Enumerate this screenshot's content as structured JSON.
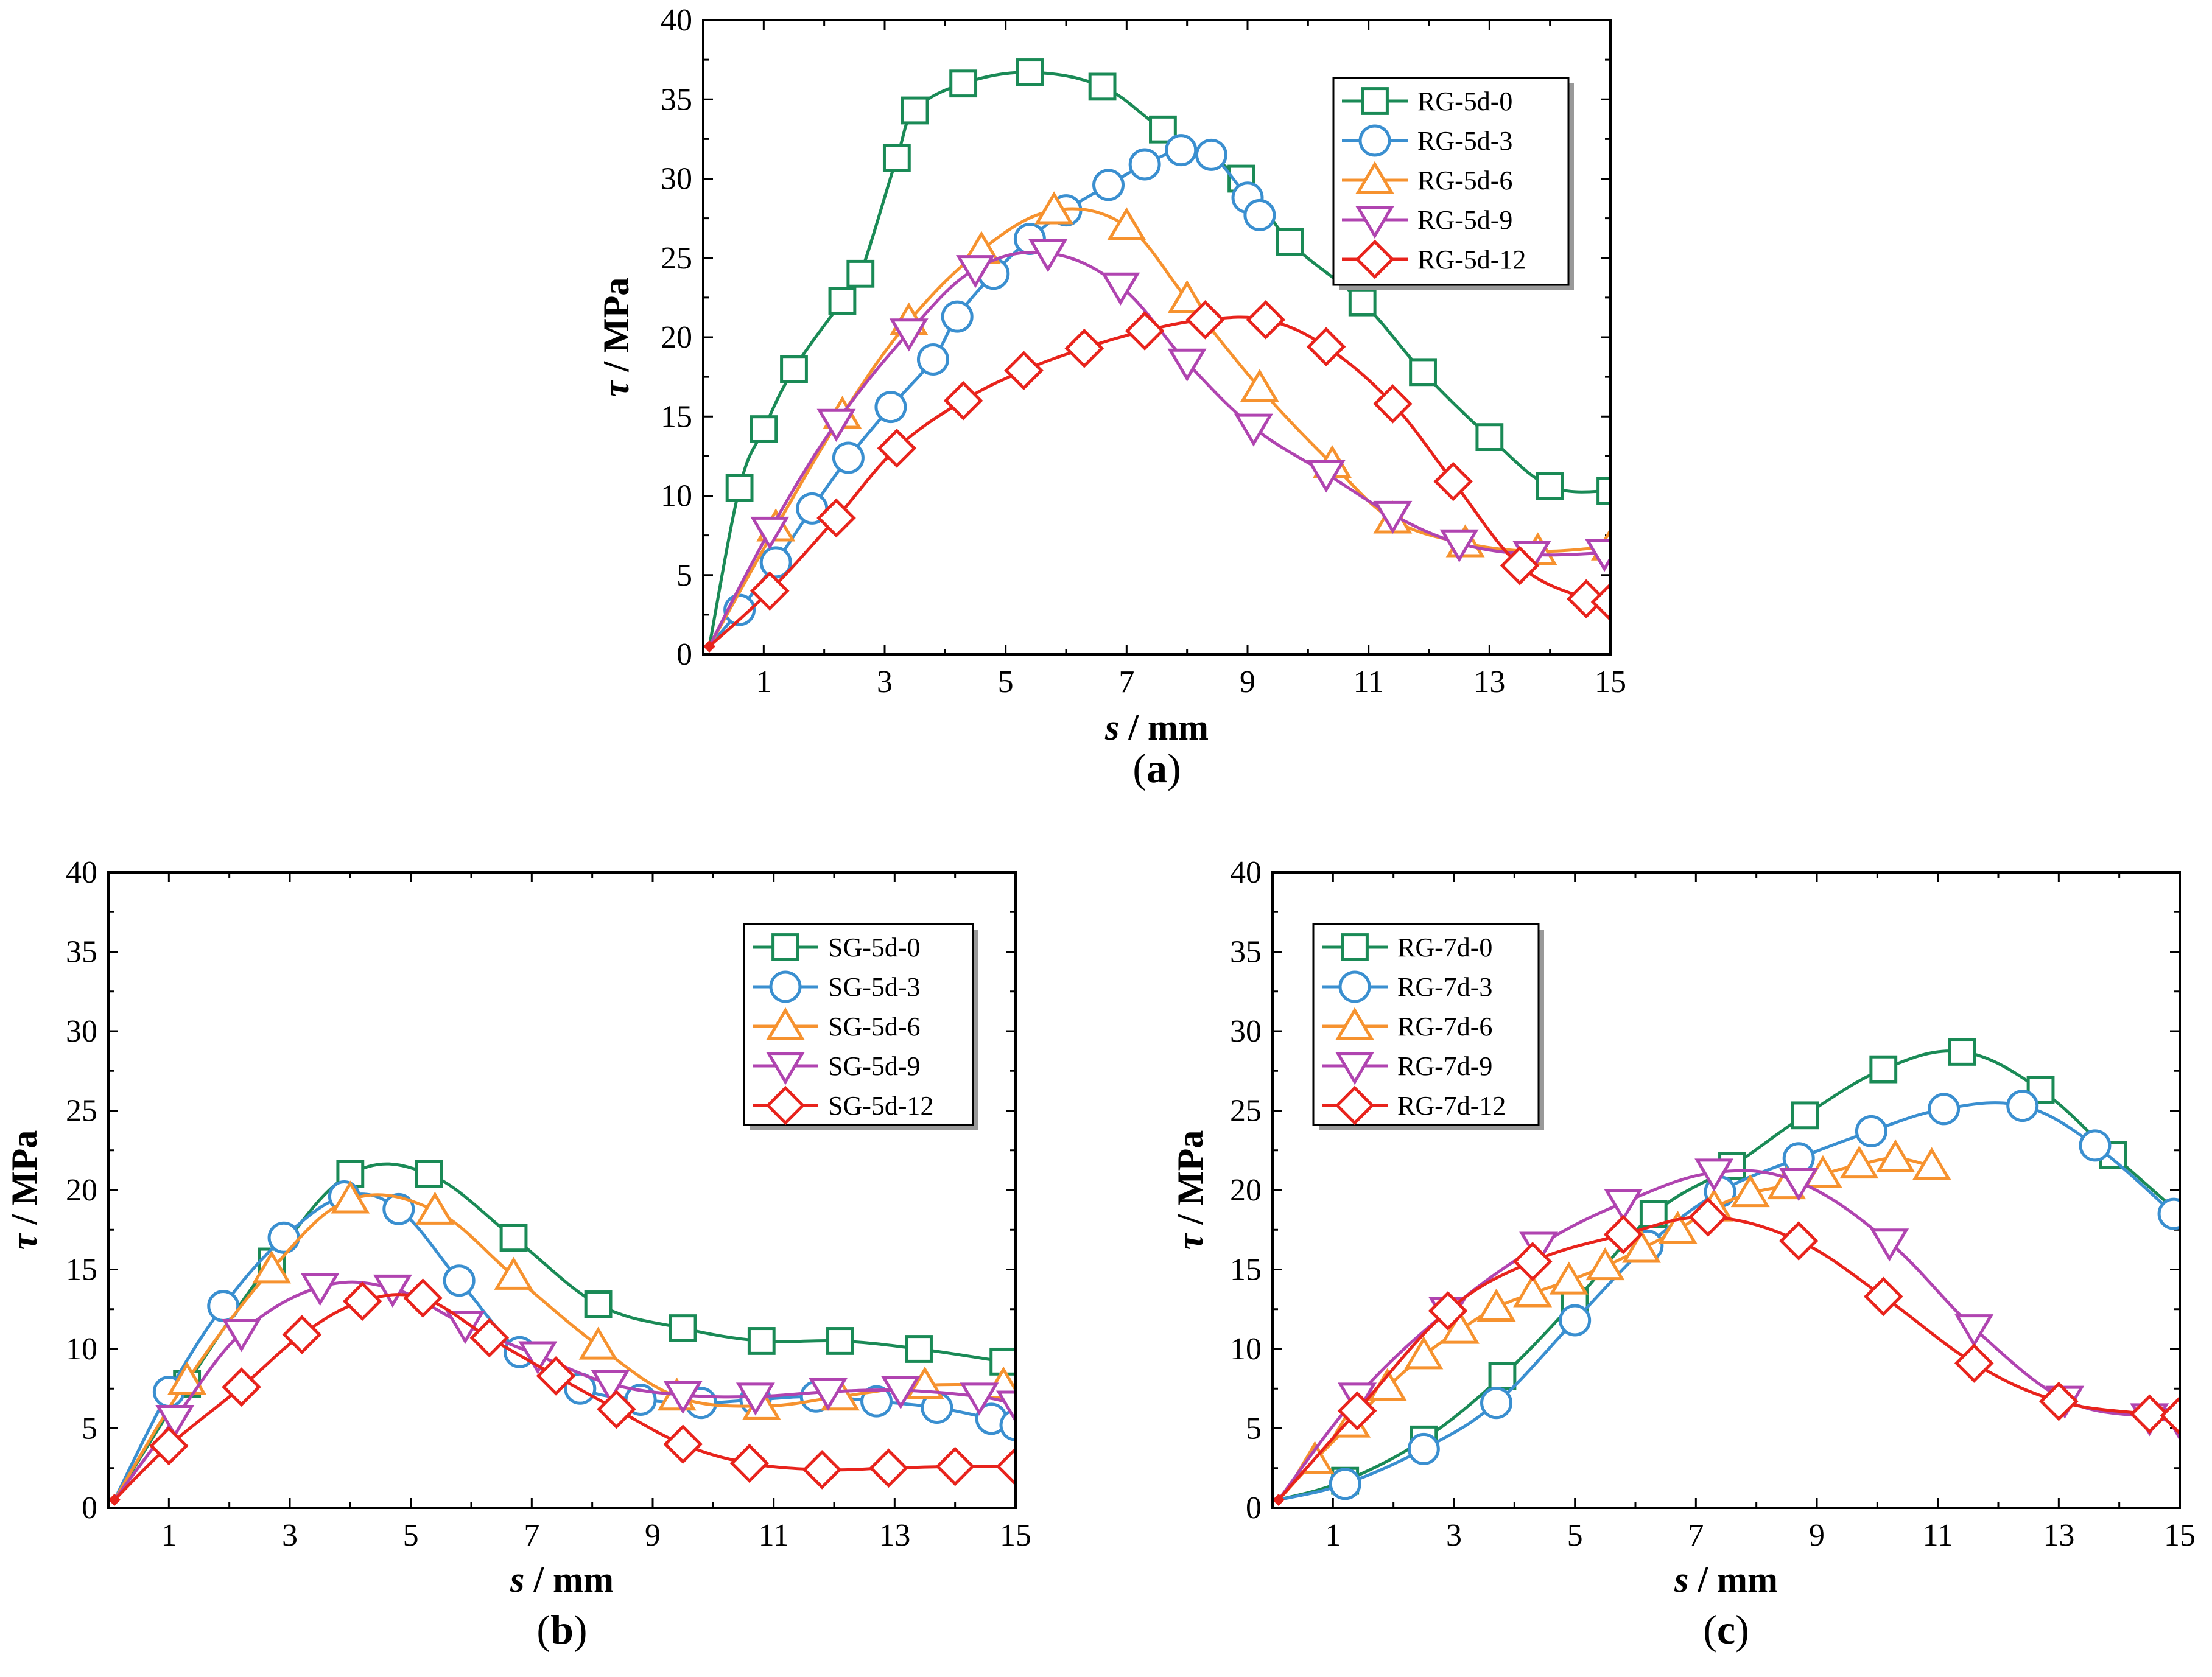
{
  "chart_data": [
    {
      "type": "line",
      "panel_label": "a",
      "xlabel_symbol": "s",
      "xlabel_unit": " / mm",
      "ylabel_symbol": "τ",
      "ylabel_unit": " / MPa",
      "xlim": [
        0,
        15
      ],
      "ylim": [
        0,
        40
      ],
      "xticks": [
        1,
        3,
        5,
        7,
        9,
        11,
        13,
        15
      ],
      "yticks": [
        0,
        5,
        10,
        15,
        20,
        25,
        30,
        35,
        40
      ],
      "legend_position": "top-right",
      "series": [
        {
          "name": "RG-5d-0",
          "color": "#1a8a56",
          "marker": "square",
          "x": [
            0.1,
            0.6,
            1.0,
            1.5,
            2.3,
            2.6,
            3.2,
            3.5,
            4.3,
            5.4,
            6.6,
            7.6,
            8.9,
            9.7,
            10.9,
            11.9,
            13.0,
            14.0,
            15.0
          ],
          "y": [
            0.5,
            10.5,
            14.2,
            18.0,
            22.3,
            24.0,
            31.3,
            34.3,
            36.0,
            36.7,
            35.8,
            33.1,
            30.0,
            26.0,
            22.2,
            17.8,
            13.7,
            10.6,
            10.3
          ]
        },
        {
          "name": "RG-5d-3",
          "color": "#3a8fd0",
          "marker": "circle",
          "x": [
            0.1,
            0.6,
            1.2,
            1.8,
            2.4,
            3.1,
            3.8,
            4.2,
            4.8,
            5.4,
            6.0,
            6.7,
            7.3,
            7.9,
            8.4,
            9.0,
            9.2
          ],
          "y": [
            0.5,
            2.8,
            5.8,
            9.2,
            12.4,
            15.6,
            18.6,
            21.3,
            24.0,
            26.2,
            28.0,
            29.6,
            30.9,
            31.8,
            31.5,
            28.8,
            27.7
          ]
        },
        {
          "name": "RG-5d-6",
          "color": "#f6922f",
          "marker": "triangle-up",
          "x": [
            0.1,
            1.2,
            2.3,
            3.4,
            4.6,
            5.8,
            7.0,
            8.0,
            9.2,
            10.4,
            11.4,
            12.6,
            13.8,
            15.0
          ],
          "y": [
            0.5,
            8.0,
            15.1,
            21.0,
            25.5,
            28.0,
            27.0,
            22.4,
            16.8,
            12.0,
            8.5,
            7.0,
            6.5,
            6.8
          ]
        },
        {
          "name": "RG-5d-9",
          "color": "#b044b0",
          "marker": "triangle-down",
          "x": [
            0.1,
            1.1,
            2.2,
            3.4,
            4.5,
            5.7,
            6.9,
            8.0,
            9.1,
            10.3,
            11.4,
            12.5,
            13.7,
            14.9
          ],
          "y": [
            0.5,
            7.8,
            14.6,
            20.3,
            24.3,
            25.3,
            23.2,
            18.4,
            14.3,
            11.4,
            8.8,
            7.0,
            6.3,
            6.4
          ]
        },
        {
          "name": "RG-5d-12",
          "color": "#e8231c",
          "marker": "diamond",
          "x": [
            0.1,
            1.1,
            2.2,
            3.2,
            4.3,
            5.3,
            6.3,
            7.3,
            8.3,
            9.3,
            10.3,
            11.4,
            12.4,
            13.5,
            14.6,
            15.0
          ],
          "y": [
            0.5,
            4.0,
            8.6,
            13.0,
            16.0,
            17.9,
            19.3,
            20.4,
            21.1,
            21.1,
            19.4,
            15.8,
            10.9,
            5.6,
            3.5,
            3.3
          ]
        }
      ]
    },
    {
      "type": "line",
      "panel_label": "b",
      "xlabel_symbol": "s",
      "xlabel_unit": " / mm",
      "ylabel_symbol": "τ",
      "ylabel_unit": " / MPa",
      "xlim": [
        0,
        15
      ],
      "ylim": [
        0,
        40
      ],
      "xticks": [
        1,
        3,
        5,
        7,
        9,
        11,
        13,
        15
      ],
      "yticks": [
        0,
        5,
        10,
        15,
        20,
        25,
        30,
        35,
        40
      ],
      "legend_position": "top-right",
      "series": [
        {
          "name": "SG-5d-0",
          "color": "#1a8a56",
          "marker": "square",
          "x": [
            0.1,
            1.3,
            2.7,
            4.0,
            5.3,
            6.7,
            8.1,
            9.5,
            10.8,
            12.1,
            13.4,
            14.8
          ],
          "y": [
            0.5,
            7.8,
            15.5,
            21.0,
            21.0,
            17.0,
            12.8,
            11.3,
            10.5,
            10.5,
            10.0,
            9.2
          ]
        },
        {
          "name": "SG-5d-3",
          "color": "#3a8fd0",
          "marker": "circle",
          "x": [
            0.1,
            1.0,
            1.9,
            2.9,
            3.9,
            4.8,
            5.8,
            6.8,
            7.8,
            8.8,
            9.8,
            10.7,
            11.7,
            12.7,
            13.7,
            14.6,
            15.0
          ],
          "y": [
            0.5,
            7.3,
            12.7,
            17.0,
            19.6,
            18.8,
            14.3,
            9.8,
            7.5,
            6.8,
            6.6,
            6.8,
            7.0,
            6.7,
            6.3,
            5.6,
            5.2
          ]
        },
        {
          "name": "SG-5d-6",
          "color": "#f6922f",
          "marker": "triangle-up",
          "x": [
            0.1,
            1.3,
            2.7,
            4.0,
            5.4,
            6.7,
            8.1,
            9.4,
            10.8,
            12.1,
            13.5,
            14.8
          ],
          "y": [
            0.5,
            8.0,
            15.0,
            19.4,
            18.7,
            14.6,
            10.2,
            7.0,
            6.4,
            7.0,
            7.7,
            7.7
          ]
        },
        {
          "name": "SG-5d-9",
          "color": "#b044b0",
          "marker": "triangle-down",
          "x": [
            0.1,
            1.1,
            2.2,
            3.5,
            4.7,
            5.9,
            7.1,
            8.3,
            9.5,
            10.7,
            11.9,
            13.1,
            14.4,
            15.0
          ],
          "y": [
            0.5,
            5.6,
            11.0,
            13.9,
            13.8,
            11.5,
            9.6,
            7.8,
            7.1,
            7.0,
            7.3,
            7.4,
            7.0,
            6.5
          ]
        },
        {
          "name": "SG-5d-12",
          "color": "#e8231c",
          "marker": "diamond",
          "x": [
            0.1,
            1.0,
            2.2,
            3.2,
            4.2,
            5.2,
            6.3,
            7.4,
            8.4,
            9.5,
            10.6,
            11.8,
            12.9,
            14.0,
            15.0
          ],
          "y": [
            0.5,
            3.9,
            7.6,
            10.9,
            13.0,
            13.2,
            10.7,
            8.3,
            6.2,
            4.0,
            2.8,
            2.4,
            2.5,
            2.6,
            2.6
          ]
        }
      ]
    },
    {
      "type": "line",
      "panel_label": "c",
      "xlabel_symbol": "s",
      "xlabel_unit": " / mm",
      "ylabel_symbol": "τ",
      "ylabel_unit": " / MPa",
      "xlim": [
        0,
        15
      ],
      "ylim": [
        0,
        40
      ],
      "xticks": [
        1,
        3,
        5,
        7,
        9,
        11,
        13,
        15
      ],
      "yticks": [
        0,
        5,
        10,
        15,
        20,
        25,
        30,
        35,
        40
      ],
      "legend_position": "top-left",
      "series": [
        {
          "name": "RG-7d-0",
          "color": "#1a8a56",
          "marker": "square",
          "x": [
            0.1,
            1.2,
            2.5,
            3.8,
            5.0,
            6.3,
            7.6,
            8.8,
            10.1,
            11.4,
            12.7,
            13.9,
            15.0
          ],
          "y": [
            0.5,
            1.7,
            4.3,
            8.3,
            13.0,
            18.5,
            21.5,
            24.7,
            27.6,
            28.7,
            26.3,
            22.2,
            18.5
          ]
        },
        {
          "name": "RG-7d-3",
          "color": "#3a8fd0",
          "marker": "circle",
          "x": [
            0.1,
            1.2,
            2.5,
            3.7,
            5.0,
            6.2,
            7.4,
            8.7,
            9.9,
            11.1,
            12.4,
            13.6,
            14.9
          ],
          "y": [
            0.5,
            1.5,
            3.7,
            6.6,
            11.8,
            16.5,
            19.9,
            22.0,
            23.7,
            25.1,
            25.3,
            22.8,
            18.5
          ]
        },
        {
          "name": "RG-7d-6",
          "color": "#f6922f",
          "marker": "triangle-up",
          "x": [
            0.1,
            0.7,
            1.3,
            1.9,
            2.5,
            3.1,
            3.7,
            4.3,
            4.9,
            5.5,
            6.1,
            6.7,
            7.3,
            7.9,
            8.5,
            9.1,
            9.7,
            10.3,
            10.9
          ],
          "y": [
            0.5,
            3.0,
            5.3,
            7.6,
            9.6,
            11.2,
            12.6,
            13.5,
            14.3,
            15.2,
            16.3,
            17.5,
            18.9,
            19.8,
            20.3,
            21.0,
            21.6,
            22.0,
            21.5
          ]
        },
        {
          "name": "RG-7d-9",
          "color": "#b044b0",
          "marker": "triangle-down",
          "x": [
            0.1,
            1.4,
            2.9,
            4.4,
            5.8,
            7.3,
            8.7,
            10.2,
            11.6,
            13.1,
            14.5,
            15.0
          ],
          "y": [
            0.5,
            7.0,
            12.4,
            16.5,
            19.2,
            21.1,
            20.5,
            16.7,
            11.3,
            6.8,
            5.7,
            5.4
          ]
        },
        {
          "name": "RG-7d-12",
          "color": "#e8231c",
          "marker": "diamond",
          "x": [
            0.1,
            1.4,
            2.9,
            4.3,
            5.8,
            7.2,
            8.7,
            10.1,
            11.6,
            13.0,
            14.5,
            15.0
          ],
          "y": [
            0.5,
            6.1,
            12.4,
            15.5,
            17.2,
            18.3,
            16.8,
            13.3,
            9.1,
            6.7,
            5.9,
            5.8
          ]
        }
      ]
    }
  ]
}
